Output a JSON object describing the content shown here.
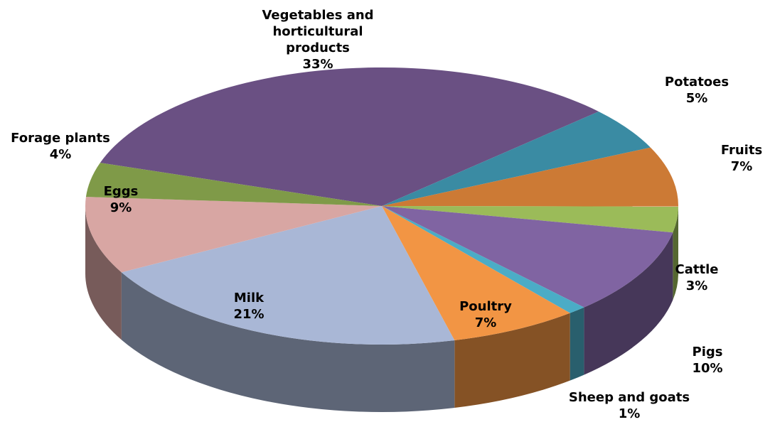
{
  "chart_data": {
    "type": "pie",
    "categories": [
      "Vegetables and horticultural products",
      "Potatoes",
      "Fruits",
      "Cattle",
      "Pigs",
      "Sheep and goats",
      "Poultry",
      "Milk",
      "Eggs",
      "Forage plants"
    ],
    "values": [
      33,
      5,
      7,
      3,
      10,
      1,
      7,
      21,
      9,
      4
    ],
    "value_labels": [
      "33%",
      "5%",
      "7%",
      "3%",
      "10%",
      "1%",
      "7%",
      "21%",
      "9%",
      "4%"
    ],
    "colors": [
      "#6a5083",
      "#3a8ba3",
      "#cc7a35",
      "#9bbb59",
      "#8064a2",
      "#4bacc6",
      "#f29544",
      "#a9b7d6",
      "#d8a6a3",
      "#7f9a48"
    ]
  }
}
